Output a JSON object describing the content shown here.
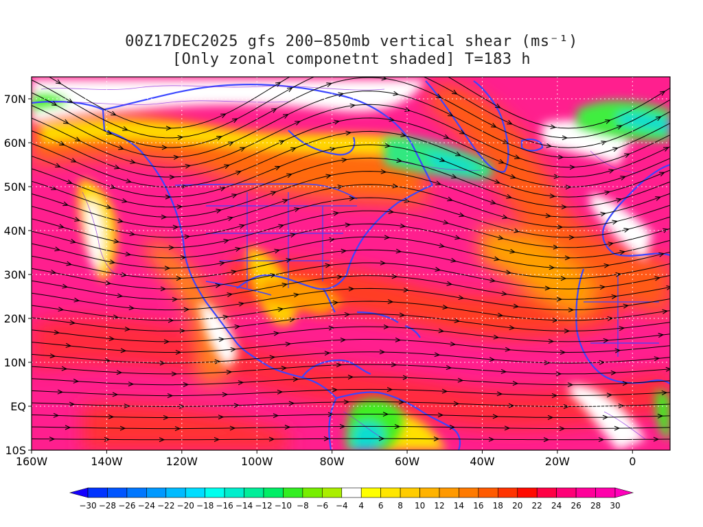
{
  "title": {
    "line1": "00Z17DEC2025 gfs 200−850mb vertical shear (ms⁻¹)",
    "line2": "[Only zonal componetnt shaded] T=183 h"
  },
  "map": {
    "lat_range": [
      -10,
      75
    ],
    "lon_range": [
      -160,
      10
    ],
    "lat_ticks": [
      {
        "value": 70,
        "label": "70N"
      },
      {
        "value": 60,
        "label": "60N"
      },
      {
        "value": 50,
        "label": "50N"
      },
      {
        "value": 40,
        "label": "40N"
      },
      {
        "value": 30,
        "label": "30N"
      },
      {
        "value": 20,
        "label": "20N"
      },
      {
        "value": 10,
        "label": "10N"
      },
      {
        "value": 0,
        "label": "EQ"
      },
      {
        "value": -10,
        "label": "10S"
      }
    ],
    "lon_ticks": [
      {
        "value": -160,
        "label": "160W"
      },
      {
        "value": -140,
        "label": "140W"
      },
      {
        "value": -120,
        "label": "120W"
      },
      {
        "value": -100,
        "label": "100W"
      },
      {
        "value": -80,
        "label": "80W"
      },
      {
        "value": -60,
        "label": "60W"
      },
      {
        "value": -40,
        "label": "40W"
      },
      {
        "value": -20,
        "label": "20W"
      },
      {
        "value": 0,
        "label": "0"
      }
    ],
    "colors": {
      "high_shear": "#ff1f8e",
      "strong": "#ff1e3c",
      "moderate": "#ff6a10",
      "mid": "#ffa000",
      "weak": "#ffe000",
      "calm": "#ffffff",
      "negative": "#80ff20",
      "neg_strong": "#10ddb0",
      "coast": "#3a46ff",
      "contour": "#8a2be2",
      "streamline": "#000000"
    }
  },
  "colorbar": {
    "labels": [
      "-30",
      "-28",
      "-26",
      "-24",
      "-22",
      "-20",
      "-18",
      "-16",
      "-14",
      "-12",
      "-10",
      "-8",
      "-6",
      "-4",
      "4",
      "6",
      "8",
      "10",
      "12",
      "14",
      "16",
      "18",
      "20",
      "22",
      "24",
      "26",
      "28",
      "30"
    ],
    "colors": [
      "#1400ff",
      "#0033ff",
      "#0055ff",
      "#0077ff",
      "#0099ff",
      "#00bbff",
      "#00ddff",
      "#00ffee",
      "#00eecc",
      "#00ee99",
      "#00ee66",
      "#33ee22",
      "#77ee00",
      "#aaee00",
      "#ffffff",
      "#ffff00",
      "#ffe600",
      "#ffcc00",
      "#ffb300",
      "#ff9900",
      "#ff7a00",
      "#ff5a00",
      "#ff3300",
      "#ff0a00",
      "#ff0044",
      "#ff0077",
      "#ff0099",
      "#ff00aa",
      "#ff00bb"
    ]
  }
}
